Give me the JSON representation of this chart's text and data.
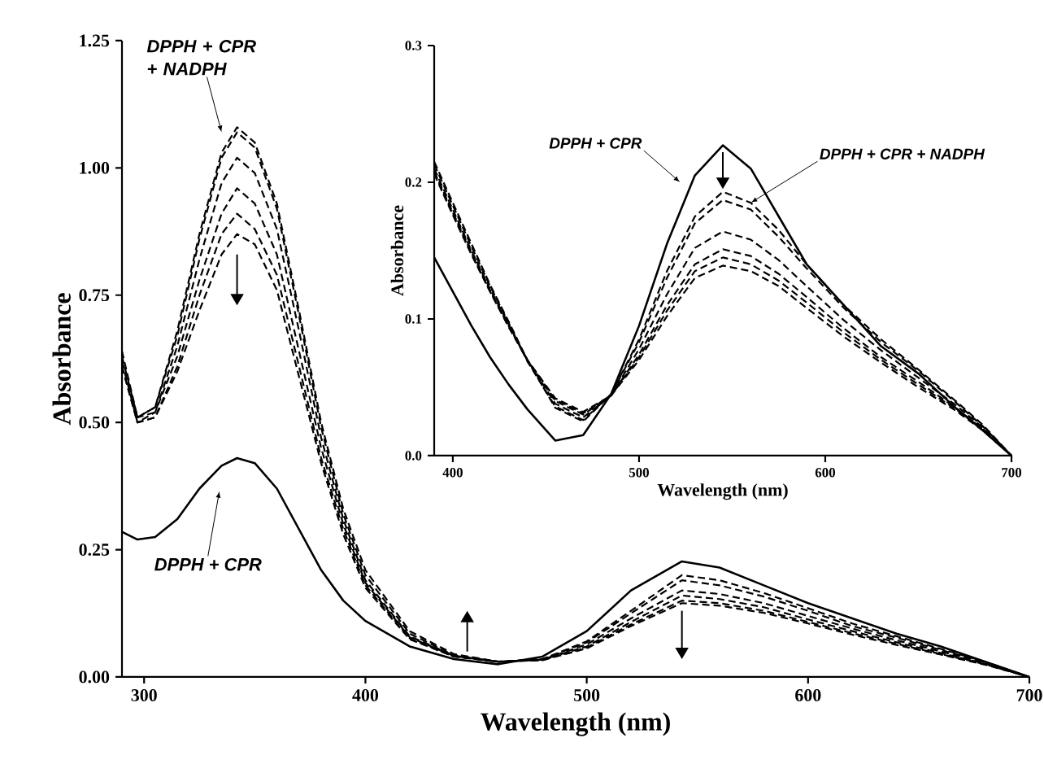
{
  "chart_data": [
    {
      "type": "line",
      "xlabel": "Wavelength (nm)",
      "ylabel": "Absorbance",
      "marker": "none",
      "xlim": [
        290,
        700
      ],
      "ylim": [
        0,
        1.25
      ],
      "xticks": [
        300,
        400,
        500,
        600,
        700
      ],
      "yticks": [
        {
          "value": 0,
          "label": "0.00"
        },
        {
          "value": 0.25,
          "label": "0.25"
        },
        {
          "value": 0.5,
          "label": "0.50"
        },
        {
          "value": 0.75,
          "label": "0.75"
        },
        {
          "value": 1.0,
          "label": "1.00"
        },
        {
          "value": 1.25,
          "label": "1.25"
        }
      ],
      "x": [
        290,
        297,
        305,
        315,
        325,
        335,
        342,
        350,
        360,
        370,
        380,
        390,
        400,
        420,
        440,
        460,
        480,
        500,
        520,
        543,
        560,
        580,
        600,
        620,
        640,
        660,
        680,
        700
      ],
      "series": [
        {
          "color": "#000000",
          "line_style": "solid",
          "values": [
            0.285,
            0.27,
            0.275,
            0.31,
            0.37,
            0.415,
            0.43,
            0.42,
            0.37,
            0.29,
            0.21,
            0.15,
            0.11,
            0.06,
            0.035,
            0.025,
            0.04,
            0.09,
            0.17,
            0.227,
            0.215,
            0.18,
            0.145,
            0.115,
            0.085,
            0.06,
            0.03,
            0
          ]
        },
        {
          "color": "#000000",
          "line_style": "dashed",
          "values": [
            0.64,
            0.51,
            0.53,
            0.68,
            0.87,
            1.03,
            1.08,
            1.05,
            0.93,
            0.72,
            0.5,
            0.33,
            0.21,
            0.09,
            0.045,
            0.03,
            0.035,
            0.07,
            0.13,
            0.2,
            0.19,
            0.165,
            0.135,
            0.105,
            0.08,
            0.055,
            0.03,
            0
          ]
        },
        {
          "color": "#000000",
          "line_style": "dashed",
          "values": [
            0.63,
            0.51,
            0.53,
            0.67,
            0.86,
            1.02,
            1.07,
            1.04,
            0.92,
            0.71,
            0.49,
            0.32,
            0.2,
            0.085,
            0.043,
            0.03,
            0.035,
            0.068,
            0.125,
            0.19,
            0.18,
            0.158,
            0.13,
            0.1,
            0.077,
            0.053,
            0.029,
            0
          ]
        },
        {
          "color": "#000000",
          "line_style": "dashed",
          "values": [
            0.62,
            0.51,
            0.52,
            0.65,
            0.82,
            0.97,
            1.02,
            0.99,
            0.88,
            0.68,
            0.47,
            0.31,
            0.19,
            0.08,
            0.042,
            0.03,
            0.034,
            0.064,
            0.115,
            0.17,
            0.163,
            0.145,
            0.12,
            0.095,
            0.072,
            0.05,
            0.027,
            0
          ]
        },
        {
          "color": "#000000",
          "line_style": "dashed",
          "values": [
            0.62,
            0.5,
            0.52,
            0.63,
            0.78,
            0.91,
            0.96,
            0.93,
            0.83,
            0.64,
            0.45,
            0.3,
            0.185,
            0.078,
            0.041,
            0.03,
            0.034,
            0.06,
            0.108,
            0.16,
            0.153,
            0.137,
            0.113,
            0.09,
            0.068,
            0.047,
            0.026,
            0
          ]
        },
        {
          "color": "#000000",
          "line_style": "dashed",
          "values": [
            0.61,
            0.5,
            0.51,
            0.61,
            0.75,
            0.87,
            0.91,
            0.88,
            0.79,
            0.61,
            0.43,
            0.29,
            0.18,
            0.076,
            0.04,
            0.03,
            0.033,
            0.058,
            0.103,
            0.15,
            0.145,
            0.13,
            0.108,
            0.086,
            0.065,
            0.045,
            0.025,
            0
          ]
        },
        {
          "color": "#000000",
          "line_style": "dashed",
          "values": [
            0.61,
            0.5,
            0.51,
            0.6,
            0.72,
            0.83,
            0.87,
            0.85,
            0.76,
            0.59,
            0.42,
            0.28,
            0.175,
            0.074,
            0.04,
            0.03,
            0.033,
            0.056,
            0.1,
            0.145,
            0.14,
            0.126,
            0.105,
            0.083,
            0.063,
            0.044,
            0.024,
            0
          ]
        }
      ],
      "annotations": [
        "DPPH + CPR + NADPH",
        "DPPH + CPR"
      ]
    },
    {
      "type": "line",
      "xlabel": "Wavelength (nm)",
      "ylabel": "Absorbance",
      "marker": "none",
      "xlim": [
        390,
        700
      ],
      "ylim": [
        0,
        0.3
      ],
      "xticks": [
        400,
        500,
        600,
        700
      ],
      "yticks": [
        {
          "value": 0,
          "label": "0.0"
        },
        {
          "value": 0.1,
          "label": "0.1"
        },
        {
          "value": 0.2,
          "label": "0.2"
        },
        {
          "value": 0.3,
          "label": "0.3"
        }
      ],
      "x": [
        390,
        400,
        410,
        420,
        430,
        440,
        455,
        470,
        485,
        500,
        515,
        530,
        545,
        560,
        575,
        590,
        610,
        630,
        650,
        670,
        685,
        700
      ],
      "series": [
        {
          "color": "#000000",
          "line_style": "solid",
          "values": [
            0.145,
            0.12,
            0.095,
            0.072,
            0.052,
            0.034,
            0.011,
            0.015,
            0.045,
            0.095,
            0.155,
            0.205,
            0.227,
            0.21,
            0.175,
            0.14,
            0.11,
            0.08,
            0.06,
            0.035,
            0.018,
            0
          ]
        },
        {
          "color": "#000000",
          "line_style": "dashed",
          "values": [
            0.215,
            0.185,
            0.155,
            0.125,
            0.098,
            0.07,
            0.035,
            0.025,
            0.045,
            0.085,
            0.135,
            0.175,
            0.193,
            0.185,
            0.165,
            0.14,
            0.11,
            0.085,
            0.063,
            0.04,
            0.022,
            0
          ]
        },
        {
          "color": "#000000",
          "line_style": "dashed",
          "values": [
            0.213,
            0.183,
            0.153,
            0.124,
            0.097,
            0.069,
            0.036,
            0.026,
            0.045,
            0.083,
            0.13,
            0.17,
            0.187,
            0.18,
            0.16,
            0.137,
            0.108,
            0.083,
            0.062,
            0.039,
            0.021,
            0
          ]
        },
        {
          "color": "#000000",
          "line_style": "dashed",
          "values": [
            0.21,
            0.18,
            0.15,
            0.122,
            0.096,
            0.07,
            0.038,
            0.028,
            0.044,
            0.078,
            0.118,
            0.152,
            0.164,
            0.158,
            0.143,
            0.124,
            0.099,
            0.077,
            0.057,
            0.037,
            0.02,
            0
          ]
        },
        {
          "color": "#000000",
          "line_style": "dashed",
          "values": [
            0.208,
            0.178,
            0.149,
            0.121,
            0.095,
            0.07,
            0.04,
            0.03,
            0.044,
            0.074,
            0.11,
            0.14,
            0.151,
            0.146,
            0.133,
            0.116,
            0.093,
            0.072,
            0.054,
            0.035,
            0.019,
            0
          ]
        },
        {
          "color": "#000000",
          "line_style": "dashed",
          "values": [
            0.207,
            0.177,
            0.148,
            0.12,
            0.095,
            0.07,
            0.041,
            0.031,
            0.044,
            0.072,
            0.106,
            0.135,
            0.145,
            0.14,
            0.128,
            0.112,
            0.09,
            0.07,
            0.052,
            0.034,
            0.019,
            0
          ]
        },
        {
          "color": "#000000",
          "line_style": "dashed",
          "values": [
            0.206,
            0.176,
            0.147,
            0.12,
            0.094,
            0.07,
            0.042,
            0.032,
            0.044,
            0.07,
            0.102,
            0.13,
            0.139,
            0.135,
            0.124,
            0.108,
            0.087,
            0.068,
            0.05,
            0.033,
            0.018,
            0
          ]
        }
      ],
      "annotations": [
        "DPPH + CPR",
        {
          "text": "DPPH + CPR + NADPH",
          "x": 560,
          "y": 0.185
        }
      ]
    }
  ]
}
